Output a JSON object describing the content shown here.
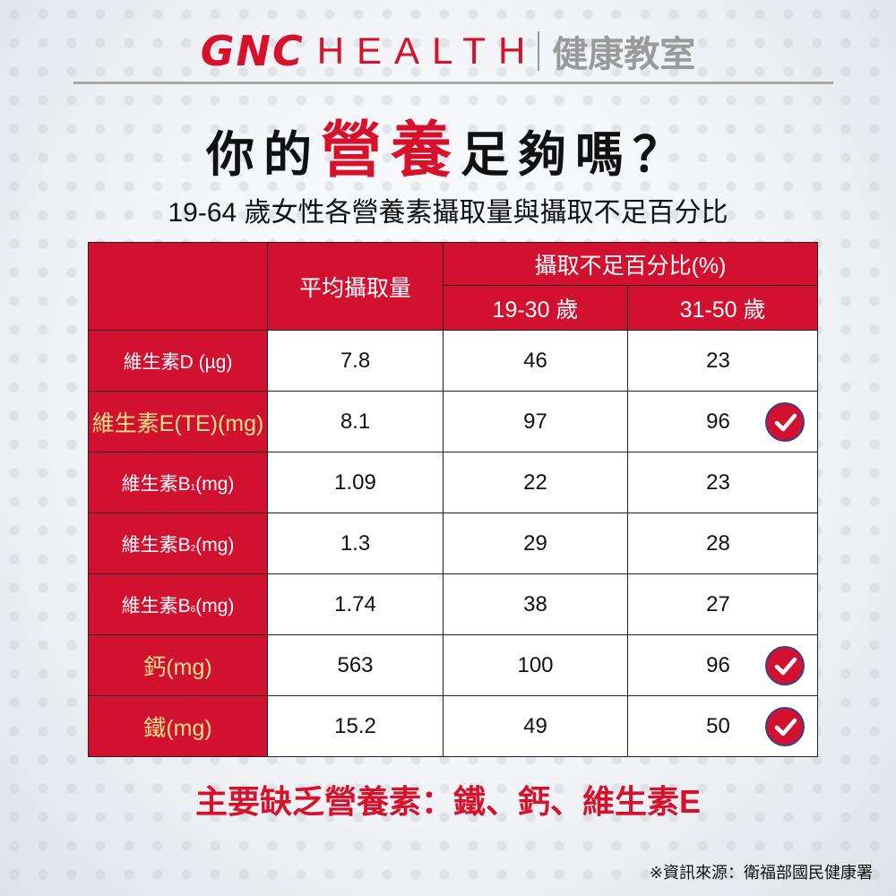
{
  "brand": {
    "logo": "GNC",
    "health": "HEALTH",
    "section": "健康教室"
  },
  "title": {
    "before": "你的",
    "highlight": "營養",
    "after": "足夠嗎？"
  },
  "subtitle": "19-64 歲女性各營養素攝取量與攝取不足百分比",
  "table": {
    "headers": {
      "avg_intake": "平均攝取量",
      "deficiency_pct": "攝取不足百分比(%)",
      "age_19_30": "19-30 歲",
      "age_31_50": "31-50 歲"
    },
    "rows": [
      {
        "name": "維生素D",
        "sub": "",
        "unit": " (µg)",
        "highlight": false,
        "avg": "7.8",
        "pct_19_30": "46",
        "pct_31_50": "23",
        "checked": false
      },
      {
        "name": "維生素E",
        "sub": "",
        "unit": "(TE)(mg)",
        "highlight": true,
        "avg": "8.1",
        "pct_19_30": "97",
        "pct_31_50": "96",
        "checked": true
      },
      {
        "name": "維生素B",
        "sub": "1",
        "unit": "(mg)",
        "highlight": false,
        "avg": "1.09",
        "pct_19_30": "22",
        "pct_31_50": "23",
        "checked": false
      },
      {
        "name": "維生素B",
        "sub": "2",
        "unit": "(mg)",
        "highlight": false,
        "avg": "1.3",
        "pct_19_30": "29",
        "pct_31_50": "28",
        "checked": false
      },
      {
        "name": "維生素B",
        "sub": "6",
        "unit": "(mg)",
        "highlight": false,
        "avg": "1.74",
        "pct_19_30": "38",
        "pct_31_50": "27",
        "checked": false
      },
      {
        "name": "鈣",
        "sub": "",
        "unit": "(mg)",
        "highlight": true,
        "avg": "563",
        "pct_19_30": "100",
        "pct_31_50": "96",
        "checked": true
      },
      {
        "name": "鐵",
        "sub": "",
        "unit": "(mg)",
        "highlight": true,
        "avg": "15.2",
        "pct_19_30": "49",
        "pct_31_50": "50",
        "checked": true
      }
    ]
  },
  "summary": "主要缺乏營養素：鐵、鈣、維生素E",
  "source": "※資訊來源：衛福部國民健康署",
  "colors": {
    "brand_red": "#d21130",
    "highlight_label": "#f7e18a",
    "check_border": "#3b3f8f"
  }
}
